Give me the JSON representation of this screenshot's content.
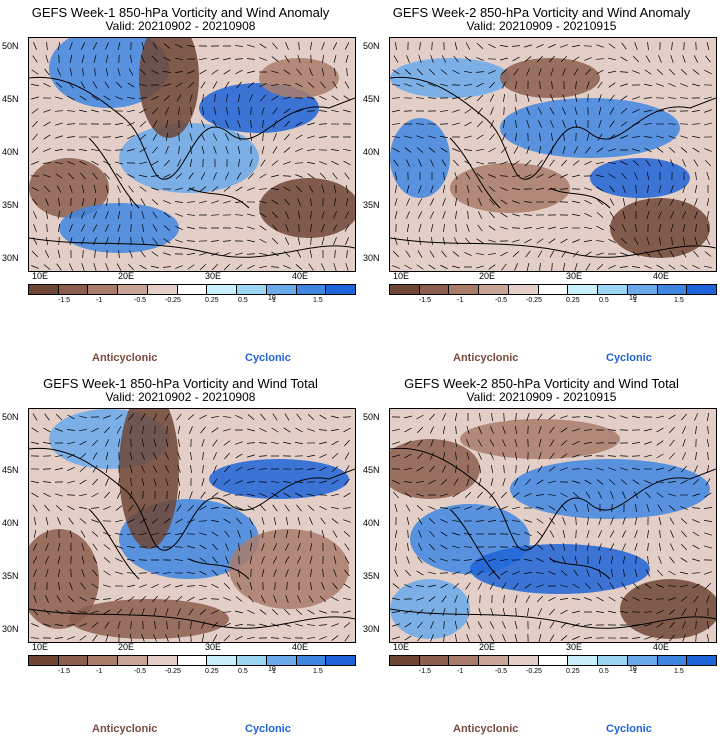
{
  "panels": [
    {
      "title": "GEFS Week-1 850-hPa Vorticity and Wind Anomaly",
      "valid": "Valid: 20210902 - 20210908"
    },
    {
      "title": "GEFS Week-2 850-hPa Vorticity and Wind Anomaly",
      "valid": "Valid: 20210909 - 20210915"
    },
    {
      "title": "GEFS Week-1 850-hPa Vorticity and Wind Total",
      "valid": "Valid: 20210902 - 20210908"
    },
    {
      "title": "GEFS Week-2 850-hPa Vorticity and Wind Total",
      "valid": "Valid: 20210909 - 20210915"
    }
  ],
  "axes": {
    "lat_labels": [
      "50N",
      "45N",
      "40N",
      "35N",
      "30N"
    ],
    "lon_labels": [
      "10E",
      "20E",
      "30E",
      "40E"
    ]
  },
  "colorbar": {
    "labels": [
      "-1.5",
      "-1",
      "-0.5",
      "-0.25",
      "0.25",
      "0.5",
      "1",
      "1.5"
    ],
    "unit": "10",
    "colors": [
      "#6e4636",
      "#8c5e4d",
      "#a97c6a",
      "#c8a596",
      "#e3cfc7",
      "#ffffff",
      "#c9f0fb",
      "#9bd7f2",
      "#6aa9ea",
      "#3f86e0",
      "#1e64d8"
    ]
  },
  "legend": {
    "anticyclonic": "Anticyclonic",
    "cyclonic": "Cyclonic"
  }
}
